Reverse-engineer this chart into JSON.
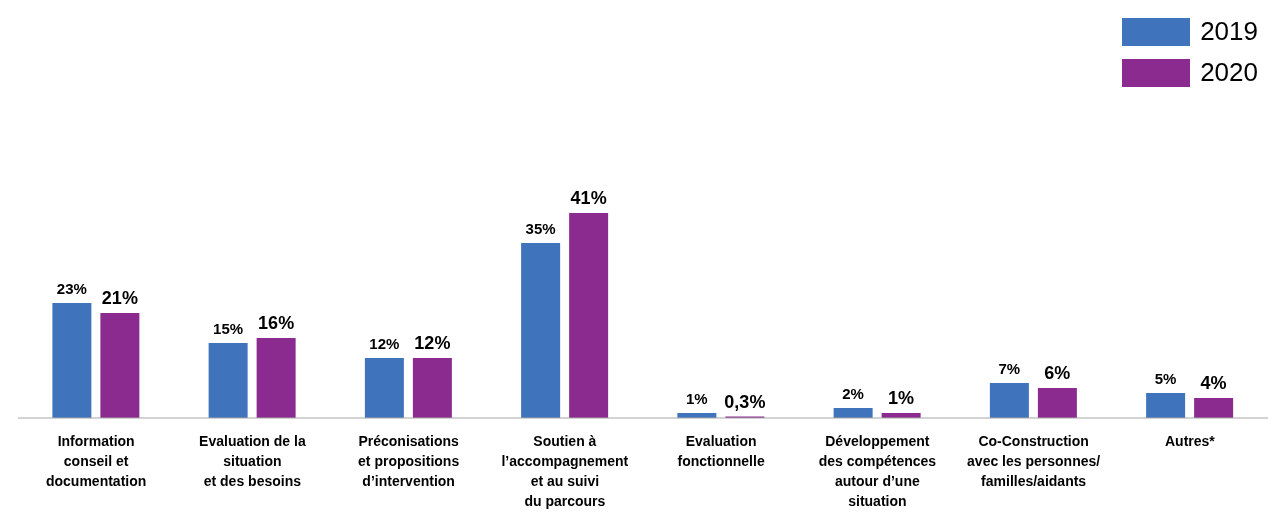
{
  "chart_data": {
    "type": "bar",
    "categories": [
      "Information\nconseil et\ndocumentation",
      "Evaluation de la\nsituation\net des besoins",
      "Préconisations\net propositions\nd’intervention",
      "Soutien à\nl’accompagnement\net au suivi\ndu parcours",
      "Evaluation\nfonctionnelle",
      "Développement\ndes compétences\nautour d’une\nsituation",
      "Co-Construction\navec les personnes/\nfamilles/aidants",
      "Autres*"
    ],
    "series": [
      {
        "name": "2019",
        "color": "#3f73bb",
        "values": [
          23,
          15,
          12,
          35,
          1,
          2,
          7,
          5
        ],
        "value_labels": [
          "23%",
          "15%",
          "12%",
          "35%",
          "1%",
          "2%",
          "7%",
          "5%"
        ]
      },
      {
        "name": "2020",
        "color": "#8b2b8f",
        "values": [
          21,
          16,
          12,
          41,
          0.3,
          1,
          6,
          4
        ],
        "value_labels": [
          "21%",
          "16%",
          "12%",
          "41%",
          "0,3%",
          "1%",
          "6%",
          "4%"
        ]
      }
    ],
    "legend": "top right",
    "grid": false
  }
}
